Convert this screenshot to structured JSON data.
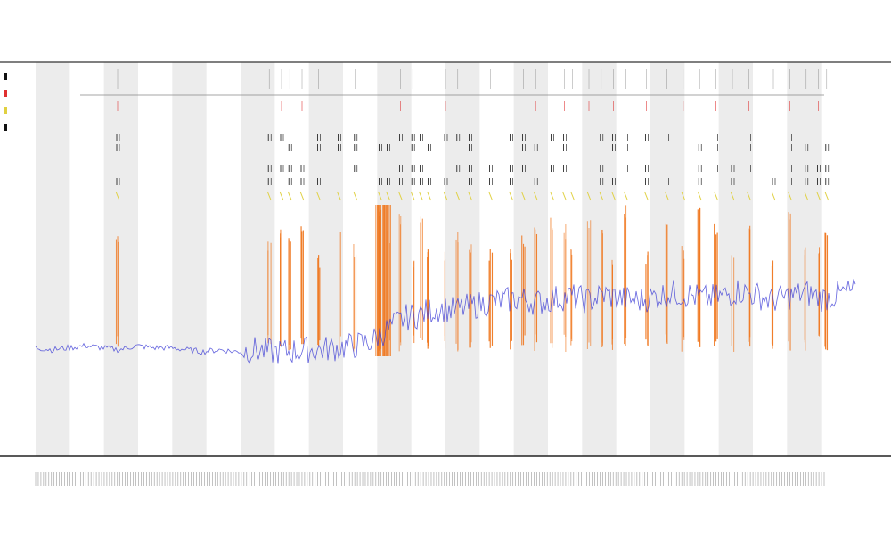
{
  "chart_data": {
    "type": "line",
    "title": "",
    "subtitle_lines": [
      "",
      ""
    ],
    "xlabel": "",
    "ylabel": "",
    "grid": false,
    "alternating_vertical_bands": true,
    "legend_position": "left",
    "colors": {
      "baseline_trace": "#3b3bd6",
      "spike_orange": "#f07820",
      "spike_red": "#e03030",
      "spike_yellow": "#e0d040",
      "spike_black": "#111111",
      "band_fill": "#ececec",
      "frame": "#000000"
    },
    "band_count": 12,
    "legend_swatches": [
      "#111111",
      "#e03030",
      "#e0d040",
      "#111111"
    ],
    "tick_label_count": 300,
    "series": [
      {
        "name": "",
        "color": "#3b3bd6",
        "values": [
          55,
          54,
          55,
          56,
          55,
          54,
          56,
          55,
          55,
          54,
          53,
          54,
          53,
          54,
          53,
          53,
          54,
          54,
          55,
          56,
          58,
          64,
          70,
          72,
          75,
          74,
          76,
          78,
          79,
          80,
          78,
          80,
          81,
          79,
          82,
          80,
          79,
          81,
          83,
          82,
          80,
          81,
          84,
          82,
          79,
          81,
          83,
          80,
          82,
          84
        ]
      }
    ],
    "spike_positions": [
      0.1,
      0.285,
      0.3,
      0.31,
      0.325,
      0.345,
      0.37,
      0.39,
      0.42,
      0.43,
      0.445,
      0.46,
      0.47,
      0.48,
      0.5,
      0.515,
      0.53,
      0.555,
      0.58,
      0.595,
      0.61,
      0.63,
      0.645,
      0.655,
      0.675,
      0.69,
      0.705,
      0.72,
      0.745,
      0.77,
      0.79,
      0.81,
      0.83,
      0.85,
      0.87,
      0.9,
      0.92,
      0.94,
      0.955,
      0.965
    ]
  }
}
